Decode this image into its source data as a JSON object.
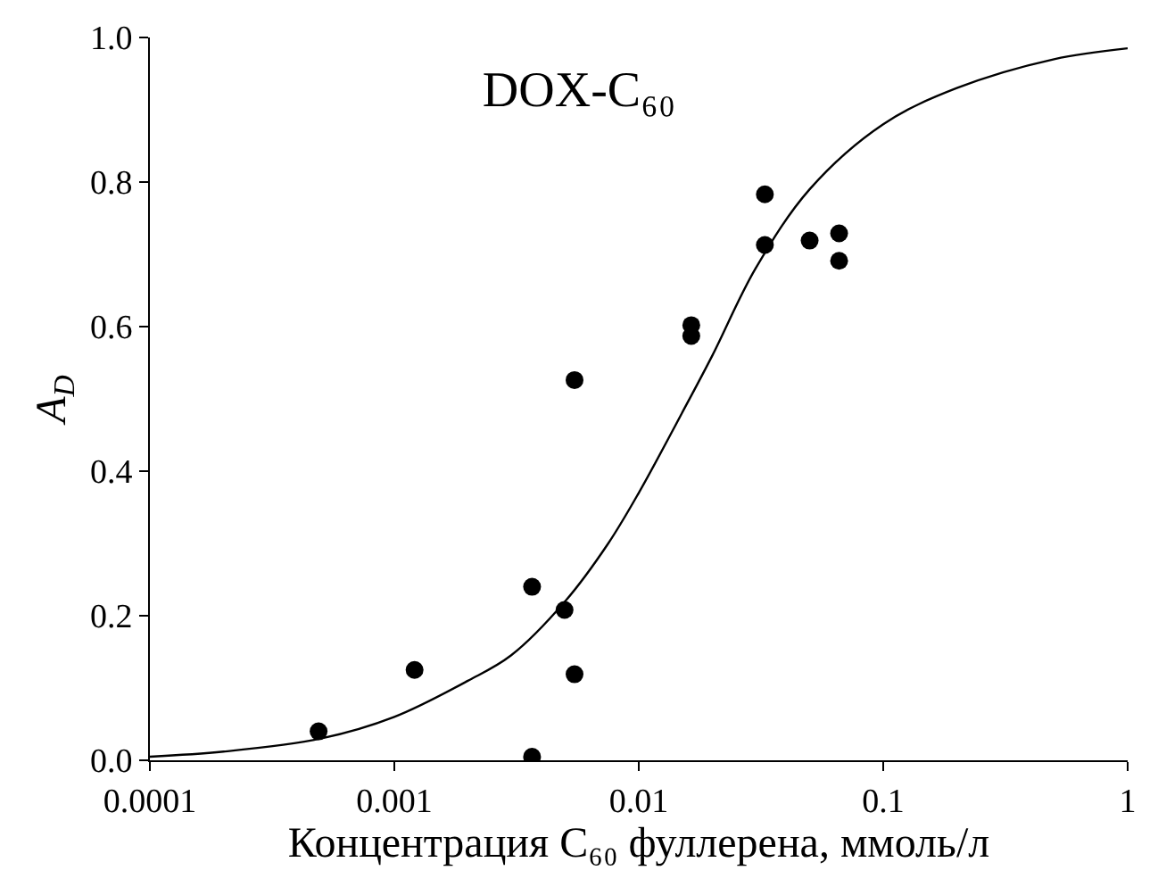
{
  "chart_data": {
    "type": "scatter",
    "title": "DOX-C₆₀",
    "xlabel": "Концентрация C₆₀ фуллерена, ммоль/л",
    "ylabel": "A$_{D}$",
    "log": "x",
    "marker": "circle",
    "xlim": [
      0.0001,
      1
    ],
    "xticks": [
      0.0001,
      0.001,
      0.01,
      0.1,
      1
    ],
    "ylim": [
      0,
      1
    ],
    "yticks": [
      {
        "value": 0,
        "label": "0.0"
      },
      {
        "value": 0.2,
        "label": "0.2"
      },
      {
        "value": 0.4,
        "label": "0.4"
      },
      {
        "value": 0.6,
        "label": "0.6"
      },
      {
        "value": 0.8,
        "label": "0.8"
      },
      {
        "value": 1,
        "label": "1.0"
      }
    ],
    "series": [
      {
        "color": "#000000",
        "x": [
          0.00049,
          0.00121,
          0.00366,
          0.00366,
          0.00497,
          0.00546,
          0.00546,
          0.0164,
          0.0164,
          0.0328,
          0.0328,
          0.05,
          0.066,
          0.066
        ],
        "values": [
          0.04,
          0.125,
          0.24,
          0.005,
          0.208,
          0.119,
          0.526,
          0.602,
          0.587,
          0.783,
          0.713,
          0.719,
          0.729,
          0.691
        ]
      },
      {
        "type": "line",
        "color": "#000000",
        "marker": "none",
        "line_style": "solid",
        "x": [
          0.0001,
          0.0002,
          0.0005,
          0.001,
          0.002,
          0.003,
          0.005,
          0.0075,
          0.01,
          0.015,
          0.02,
          0.03,
          0.05,
          0.1,
          0.2,
          0.5,
          1
        ],
        "values": [
          0.005,
          0.012,
          0.03,
          0.06,
          0.11,
          0.145,
          0.22,
          0.3,
          0.37,
          0.48,
          0.56,
          0.68,
          0.79,
          0.88,
          0.93,
          0.97,
          0.985
        ]
      }
    ]
  }
}
